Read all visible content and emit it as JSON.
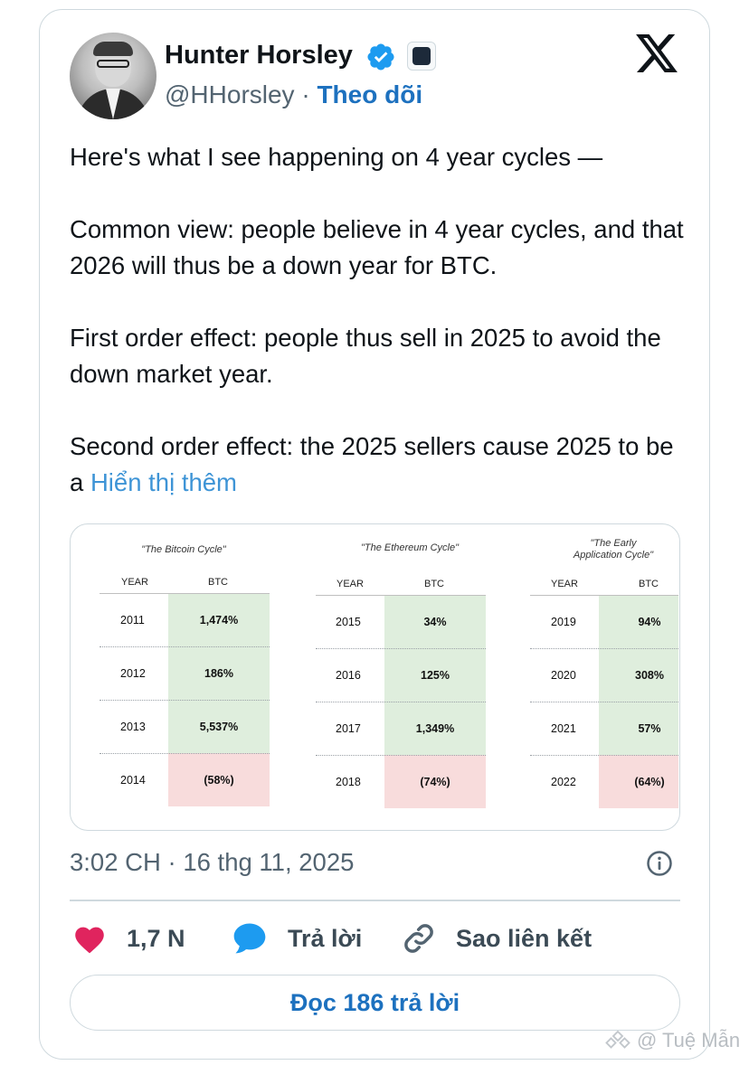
{
  "author": {
    "name": "Hunter Horsley",
    "handle": "@HHorsley",
    "separator": "·",
    "follow_label": "Theo dõi",
    "verified_icon": "verified-badge-icon",
    "affiliate_icon": "affiliate-badge-icon"
  },
  "tweet": {
    "paragraphs": [
      "Here's what I see happening on 4 year cycles —",
      "Common view: people believe in 4 year cycles, and that 2026 will thus be a down year for BTC.",
      "First order effect: people thus sell in 2025 to avoid the down market year."
    ],
    "last_paragraph": "Second order effect: the 2025 sellers cause 2025 to be a ",
    "show_more": "Hiển thị thêm"
  },
  "media": {
    "tables": [
      {
        "title": "\"The Bitcoin Cycle\"",
        "col_year": "YEAR",
        "col_value": "BTC",
        "rows": [
          {
            "year": "2011",
            "value": "1,474%",
            "positive": true
          },
          {
            "year": "2012",
            "value": "186%",
            "positive": true
          },
          {
            "year": "2013",
            "value": "5,537%",
            "positive": true
          },
          {
            "year": "2014",
            "value": "(58%)",
            "positive": false
          }
        ]
      },
      {
        "title": "\"The Ethereum Cycle\"",
        "col_year": "YEAR",
        "col_value": "BTC",
        "rows": [
          {
            "year": "2015",
            "value": "34%",
            "positive": true
          },
          {
            "year": "2016",
            "value": "125%",
            "positive": true
          },
          {
            "year": "2017",
            "value": "1,349%",
            "positive": true
          },
          {
            "year": "2018",
            "value": "(74%)",
            "positive": false
          }
        ]
      },
      {
        "title_line1": "\"The Early",
        "title_line2": "Application Cycle\"",
        "col_year": "YEAR",
        "col_value": "BTC",
        "rows": [
          {
            "year": "2019",
            "value": "94%",
            "positive": true
          },
          {
            "year": "2020",
            "value": "308%",
            "positive": true
          },
          {
            "year": "2021",
            "value": "57%",
            "positive": true
          },
          {
            "year": "2022",
            "value": "(64%)",
            "positive": false
          }
        ]
      }
    ],
    "colors": {
      "positive": "#dfeedd",
      "negative": "#f8dcdc"
    }
  },
  "meta": {
    "timestamp": "3:02 CH · 16 thg 11, 2025",
    "info_icon": "info-icon"
  },
  "actions": {
    "like_count": "1,7 N",
    "reply_label": "Trả lời",
    "copy_link_label": "Sao liên kết",
    "read_replies_label": "Đọc 186 trả lời"
  },
  "watermark": {
    "text": "@ Tuệ Mẫn"
  },
  "colors": {
    "accent": "#1d71bf",
    "link": "#3e94d6",
    "like": "#e0245e",
    "reply_bubble": "#1d9bf0",
    "secondary_text": "#536471"
  }
}
